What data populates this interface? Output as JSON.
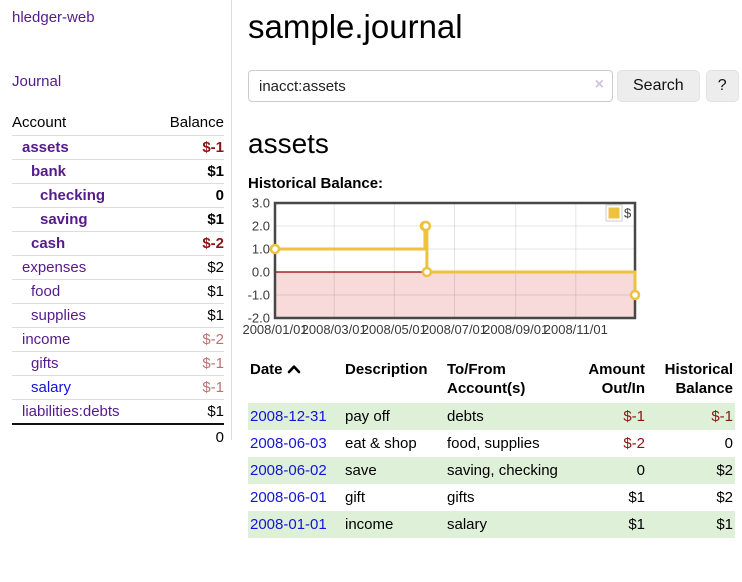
{
  "app": {
    "brand": "hledger-web",
    "nav_journal": "Journal",
    "title": "sample.journal"
  },
  "search": {
    "value": "inacct:assets",
    "clear_label": "×",
    "button_label": "Search",
    "help_label": "?"
  },
  "sidebar": {
    "col_account": "Account",
    "col_balance": "Balance",
    "accounts": [
      {
        "name": "assets",
        "indent": 1,
        "bold": true,
        "link": "purple",
        "balance": "$-1",
        "balance_style": "sneg"
      },
      {
        "name": "bank",
        "indent": 2,
        "bold": true,
        "link": "purple",
        "balance": "$1",
        "balance_style": "sbold"
      },
      {
        "name": "checking",
        "indent": 3,
        "bold": true,
        "link": "purple",
        "balance": "0",
        "balance_style": "sbold"
      },
      {
        "name": "saving",
        "indent": 3,
        "bold": true,
        "link": "purple",
        "balance": "$1",
        "balance_style": "sbold"
      },
      {
        "name": "cash",
        "indent": 2,
        "bold": true,
        "link": "purple",
        "balance": "$-2",
        "balance_style": "sneg"
      },
      {
        "name": "expenses",
        "indent": 1,
        "bold": false,
        "link": "purple",
        "balance": "$2",
        "balance_style": "plain"
      },
      {
        "name": "food",
        "indent": 2,
        "bold": false,
        "link": "purple",
        "balance": "$1",
        "balance_style": "plain"
      },
      {
        "name": "supplies",
        "indent": 2,
        "bold": false,
        "link": "purple",
        "balance": "$1",
        "balance_style": "plain"
      },
      {
        "name": "income",
        "indent": 1,
        "bold": false,
        "link": "purple",
        "balance": "$-2",
        "balance_style": "rose"
      },
      {
        "name": "gifts",
        "indent": 2,
        "bold": false,
        "link": "purple",
        "balance": "$-1",
        "balance_style": "rose"
      },
      {
        "name": "salary",
        "indent": 2,
        "bold": false,
        "link": "blue",
        "balance": "$-1",
        "balance_style": "rose"
      },
      {
        "name": "liabilities:debts",
        "indent": 1,
        "bold": false,
        "link": "purple",
        "balance": "$1",
        "balance_style": "plain"
      }
    ],
    "total": "0"
  },
  "account_page": {
    "heading": "assets",
    "chart_label": "Historical Balance:"
  },
  "chart_data": {
    "type": "line",
    "step": true,
    "title": "Historical Balance",
    "legend": "$",
    "legend_position": "top-right",
    "series": [
      {
        "name": "$",
        "color": "#edc240",
        "points": [
          [
            "2008-01-01",
            1
          ],
          [
            "2008-06-01",
            2
          ],
          [
            "2008-06-02",
            2
          ],
          [
            "2008-06-03",
            0
          ],
          [
            "2008-12-31",
            -1
          ]
        ]
      }
    ],
    "x_range": [
      "2008-01-01",
      "2008-12-31"
    ],
    "x_ticks": [
      "2008/01/01",
      "2008/03/01",
      "2008/05/01",
      "2008/07/01",
      "2008/09/01",
      "2008/11/01"
    ],
    "y_ticks": [
      3.0,
      2.0,
      1.0,
      0.0,
      -1.0,
      -2.0
    ],
    "ylim": [
      -2,
      3
    ],
    "grid": true,
    "negative_region_color": "#f8dada",
    "zero_line_color": "#8b0000"
  },
  "register": {
    "columns": {
      "date": "Date",
      "description": "Description",
      "tofrom1": "To/From",
      "tofrom2": "Account(s)",
      "amount1": "Amount",
      "amount2": "Out/In",
      "hist1": "Historical",
      "hist2": "Balance"
    },
    "rows": [
      {
        "date": "2008-12-31",
        "description": "pay off",
        "accounts": "debts",
        "amount": "$-1",
        "amount_neg": true,
        "balance": "$-1",
        "balance_neg": true,
        "shaded": true
      },
      {
        "date": "2008-06-03",
        "description": "eat & shop",
        "accounts": "food, supplies",
        "amount": "$-2",
        "amount_neg": true,
        "balance": "0",
        "balance_neg": false,
        "shaded": false
      },
      {
        "date": "2008-06-02",
        "description": "save",
        "accounts": "saving, checking",
        "amount": "0",
        "amount_neg": false,
        "balance": "$2",
        "balance_neg": false,
        "shaded": true
      },
      {
        "date": "2008-06-01",
        "description": "gift",
        "accounts": "gifts",
        "amount": "$1",
        "amount_neg": false,
        "balance": "$2",
        "balance_neg": false,
        "shaded": false
      },
      {
        "date": "2008-01-01",
        "description": "income",
        "accounts": "salary",
        "amount": "$1",
        "amount_neg": false,
        "balance": "$1",
        "balance_neg": false,
        "shaded": true
      }
    ]
  },
  "colors": {
    "link_purple": "#551A8B",
    "link_blue": "#1414d6",
    "negative_strong": "#8b1414",
    "negative_muted": "#bf7070",
    "row_stripe_green": "#dff0d8",
    "chart_line_yellow": "#edc240",
    "chart_negative_bg": "#f8dada",
    "chart_zero_line": "#8b0000"
  }
}
